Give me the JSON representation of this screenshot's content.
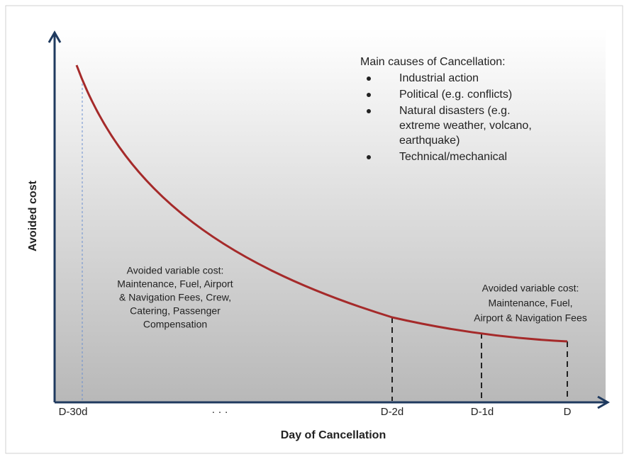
{
  "axes": {
    "y_label": "Avoided cost",
    "x_label": "Day of Cancellation",
    "x_ticks": [
      "D-30d",
      "· · ·",
      "D-2d",
      "D-1d",
      "D"
    ]
  },
  "causes": {
    "title": "Main causes of Cancellation:",
    "items": [
      [
        "Industrial action"
      ],
      [
        "Political (e.g. conflicts)"
      ],
      [
        "Natural disasters (e.g.",
        "extreme weather, volcano,",
        "earthquake)"
      ],
      [
        "Technical/mechanical"
      ]
    ]
  },
  "annotations": [
    {
      "lines": [
        "Avoided variable cost:",
        "Maintenance, Fuel, Airport",
        "& Navigation Fees, Crew,",
        "Catering, Passenger",
        "Compensation"
      ]
    },
    {
      "lines": [
        "Avoided variable cost:",
        "Maintenance, Fuel,",
        "Airport & Navigation Fees"
      ]
    }
  ]
}
